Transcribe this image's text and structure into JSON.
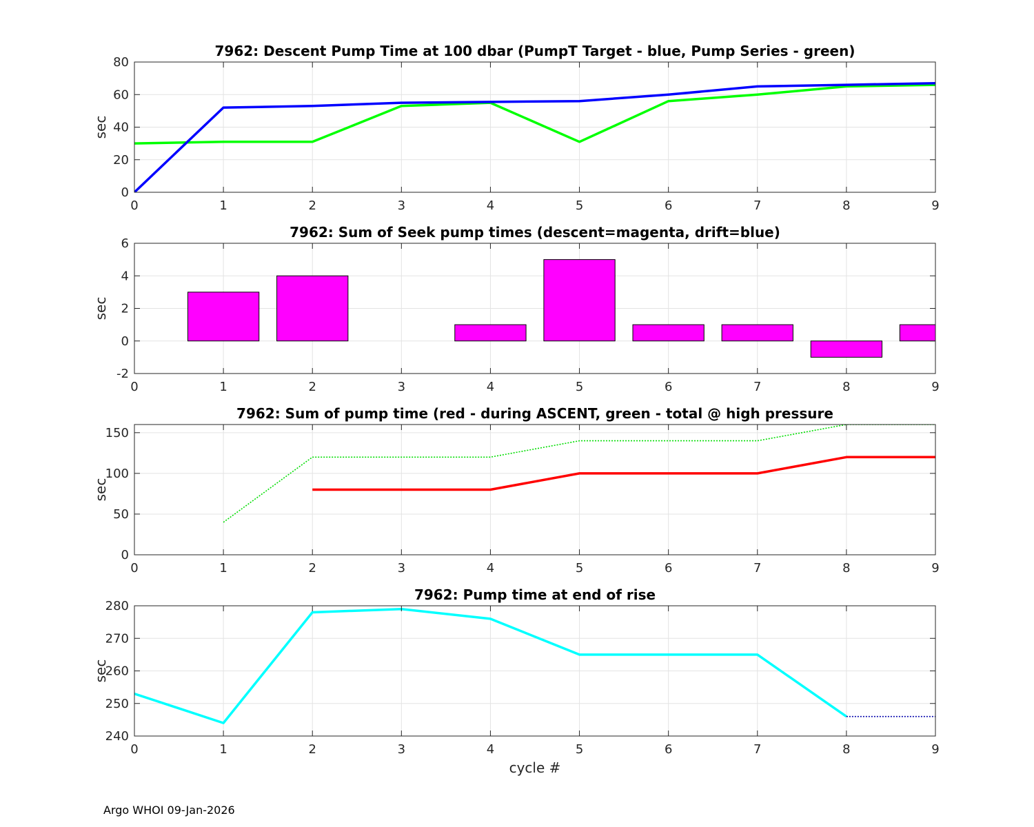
{
  "footer": "Argo WHOI 09-Jan-2026",
  "chart_data": [
    {
      "type": "line",
      "title": "7962: Descent Pump Time at 100 dbar (PumpT Target - blue, Pump Series - green)",
      "xlabel": "",
      "ylabel": "sec",
      "xlim": [
        0,
        9
      ],
      "ylim": [
        0,
        80
      ],
      "xticks": [
        0,
        1,
        2,
        3,
        4,
        5,
        6,
        7,
        8,
        9
      ],
      "yticks": [
        0,
        20,
        40,
        60,
        80
      ],
      "grid": true,
      "series": [
        {
          "color": "#00ff00",
          "style": "solid",
          "x": [
            0,
            1,
            2,
            3,
            4,
            5,
            6,
            7,
            8,
            9
          ],
          "y": [
            30,
            31,
            31,
            53,
            55,
            31,
            56,
            60,
            65,
            66
          ]
        },
        {
          "color": "#0000ff",
          "style": "solid",
          "x": [
            0,
            1,
            2,
            3,
            4,
            5,
            6,
            7,
            8,
            9
          ],
          "y": [
            0,
            52,
            53,
            55,
            55.5,
            56,
            60,
            65,
            66,
            67
          ]
        }
      ]
    },
    {
      "type": "bar",
      "title": "7962: Sum of Seek pump times (descent=magenta, drift=blue)",
      "xlabel": "",
      "ylabel": "sec",
      "xlim": [
        0,
        9
      ],
      "ylim": [
        -2,
        6
      ],
      "xticks": [
        0,
        1,
        2,
        3,
        4,
        5,
        6,
        7,
        8,
        9
      ],
      "yticks": [
        -2,
        0,
        2,
        4,
        6
      ],
      "grid": true,
      "bar_color": "#ff00ff",
      "categories": [
        1,
        2,
        3,
        4,
        5,
        6,
        7,
        8,
        9
      ],
      "values": [
        3,
        4,
        0,
        1,
        5,
        1,
        1,
        -1,
        1
      ]
    },
    {
      "type": "line",
      "title": "7962: Sum of pump time (red - during ASCENT, green - total @ high pressure",
      "xlabel": "",
      "ylabel": "sec",
      "xlim": [
        0,
        9
      ],
      "ylim": [
        0,
        160
      ],
      "xticks": [
        0,
        1,
        2,
        3,
        4,
        5,
        6,
        7,
        8,
        9
      ],
      "yticks": [
        0,
        50,
        100,
        150
      ],
      "grid": true,
      "series": [
        {
          "color": "#00dd00",
          "style": "dotted",
          "x": [
            1,
            2,
            3,
            4,
            5,
            6,
            7,
            8,
            9
          ],
          "y": [
            40,
            120,
            120,
            120,
            140,
            140,
            140,
            160,
            160
          ]
        },
        {
          "color": "#ff0000",
          "style": "solid",
          "x": [
            2,
            3,
            4,
            5,
            6,
            7,
            8,
            9
          ],
          "y": [
            80,
            80,
            80,
            100,
            100,
            100,
            120,
            120
          ]
        }
      ]
    },
    {
      "type": "line",
      "title": "7962: Pump time at end of rise",
      "xlabel": "cycle #",
      "ylabel": "sec",
      "xlim": [
        0,
        9
      ],
      "ylim": [
        240,
        280
      ],
      "xticks": [
        0,
        1,
        2,
        3,
        4,
        5,
        6,
        7,
        8,
        9
      ],
      "yticks": [
        240,
        250,
        260,
        270,
        280
      ],
      "grid": true,
      "series": [
        {
          "color": "#00ffff",
          "style": "solid",
          "x": [
            0,
            1,
            2,
            3,
            4,
            5,
            6,
            7,
            8
          ],
          "y": [
            253,
            244,
            278,
            279,
            276,
            265,
            265,
            265,
            246
          ]
        },
        {
          "color": "#0000aa",
          "style": "dotted",
          "x": [
            8,
            9
          ],
          "y": [
            246,
            246
          ]
        }
      ]
    }
  ]
}
